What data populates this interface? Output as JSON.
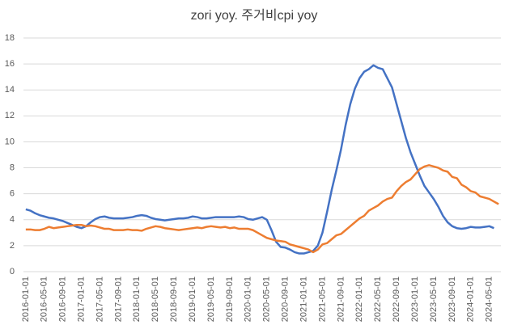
{
  "chart_data": {
    "type": "line",
    "title": "zori yoy. 주거비cpi yoy",
    "categories": [
      "2016-01-01",
      null,
      null,
      null,
      "2016-05-01",
      null,
      null,
      null,
      "2016-09-01",
      null,
      null,
      null,
      "2017-01-01",
      null,
      null,
      null,
      "2017-05-01",
      null,
      null,
      null,
      "2017-09-01",
      null,
      null,
      null,
      "2018-01-01",
      null,
      null,
      null,
      "2018-05-01",
      null,
      null,
      null,
      "2018-09-01",
      null,
      null,
      null,
      "2019-01-01",
      null,
      null,
      null,
      "2019-05-01",
      null,
      null,
      null,
      "2019-09-01",
      null,
      null,
      null,
      "2020-01-01",
      null,
      null,
      null,
      "2020-05-01",
      null,
      null,
      null,
      "2020-09-01",
      null,
      null,
      null,
      "2021-01-01",
      null,
      null,
      null,
      "2021-05-01",
      null,
      null,
      null,
      "2021-09-01",
      null,
      null,
      null,
      "2022-01-01",
      null,
      null,
      null,
      "2022-05-01",
      null,
      null,
      null,
      "2022-09-01",
      null,
      null,
      null,
      "2023-01-01",
      null,
      null,
      null,
      "2023-05-01",
      null,
      null,
      null,
      "2023-09-01",
      null,
      null,
      null,
      "2024-01-01",
      null,
      null,
      null,
      "2024-05-01",
      null,
      null
    ],
    "series": [
      {
        "color": "#4472c4",
        "values": [
          4.8,
          4.7,
          4.5,
          4.35,
          4.25,
          4.15,
          4.1,
          4.0,
          3.9,
          3.75,
          3.6,
          3.45,
          3.35,
          3.5,
          3.8,
          4.05,
          4.2,
          4.25,
          4.15,
          4.1,
          4.1,
          4.1,
          4.15,
          4.2,
          4.3,
          4.35,
          4.3,
          4.15,
          4.05,
          4.0,
          3.95,
          4.0,
          4.05,
          4.1,
          4.1,
          4.15,
          4.25,
          4.2,
          4.1,
          4.1,
          4.15,
          4.2,
          4.2,
          4.2,
          4.2,
          4.2,
          4.25,
          4.2,
          4.05,
          4.0,
          4.1,
          4.2,
          4.0,
          3.2,
          2.3,
          1.9,
          1.85,
          1.7,
          1.5,
          1.4,
          1.4,
          1.5,
          1.6,
          2.0,
          3.0,
          4.6,
          6.3,
          7.8,
          9.4,
          11.3,
          12.9,
          14.1,
          14.9,
          15.4,
          15.6,
          15.9,
          15.7,
          15.6,
          14.9,
          14.2,
          12.9,
          11.6,
          10.3,
          9.2,
          8.3,
          7.4,
          6.6,
          6.1,
          5.6,
          5.0,
          4.3,
          3.8,
          3.5,
          3.35,
          3.3,
          3.35,
          3.45,
          3.4,
          3.4,
          3.45,
          3.5,
          3.35,
          null
        ]
      },
      {
        "color": "#ed7d31",
        "values": [
          3.25,
          3.25,
          3.2,
          3.2,
          3.3,
          3.45,
          3.35,
          3.4,
          3.45,
          3.5,
          3.55,
          3.6,
          3.6,
          3.5,
          3.55,
          3.5,
          3.4,
          3.3,
          3.3,
          3.2,
          3.2,
          3.2,
          3.25,
          3.2,
          3.2,
          3.15,
          3.3,
          3.4,
          3.5,
          3.45,
          3.35,
          3.3,
          3.25,
          3.2,
          3.25,
          3.3,
          3.35,
          3.4,
          3.35,
          3.45,
          3.5,
          3.45,
          3.4,
          3.45,
          3.35,
          3.4,
          3.3,
          3.3,
          3.3,
          3.2,
          3.0,
          2.8,
          2.6,
          2.5,
          2.4,
          2.35,
          2.3,
          2.1,
          2.0,
          1.9,
          1.8,
          1.7,
          1.5,
          1.7,
          2.1,
          2.2,
          2.5,
          2.8,
          2.9,
          3.2,
          3.5,
          3.8,
          4.1,
          4.3,
          4.7,
          4.9,
          5.1,
          5.4,
          5.6,
          5.7,
          6.2,
          6.6,
          6.9,
          7.1,
          7.5,
          7.9,
          8.1,
          8.2,
          8.1,
          8.0,
          7.8,
          7.7,
          7.3,
          7.2,
          6.7,
          6.5,
          6.2,
          6.1,
          5.8,
          5.7,
          5.6,
          5.4,
          5.2
        ]
      }
    ],
    "ylim": [
      0,
      18
    ],
    "yticks": [
      0,
      2,
      4,
      6,
      8,
      10,
      12,
      14,
      16,
      18
    ],
    "grid": true
  }
}
